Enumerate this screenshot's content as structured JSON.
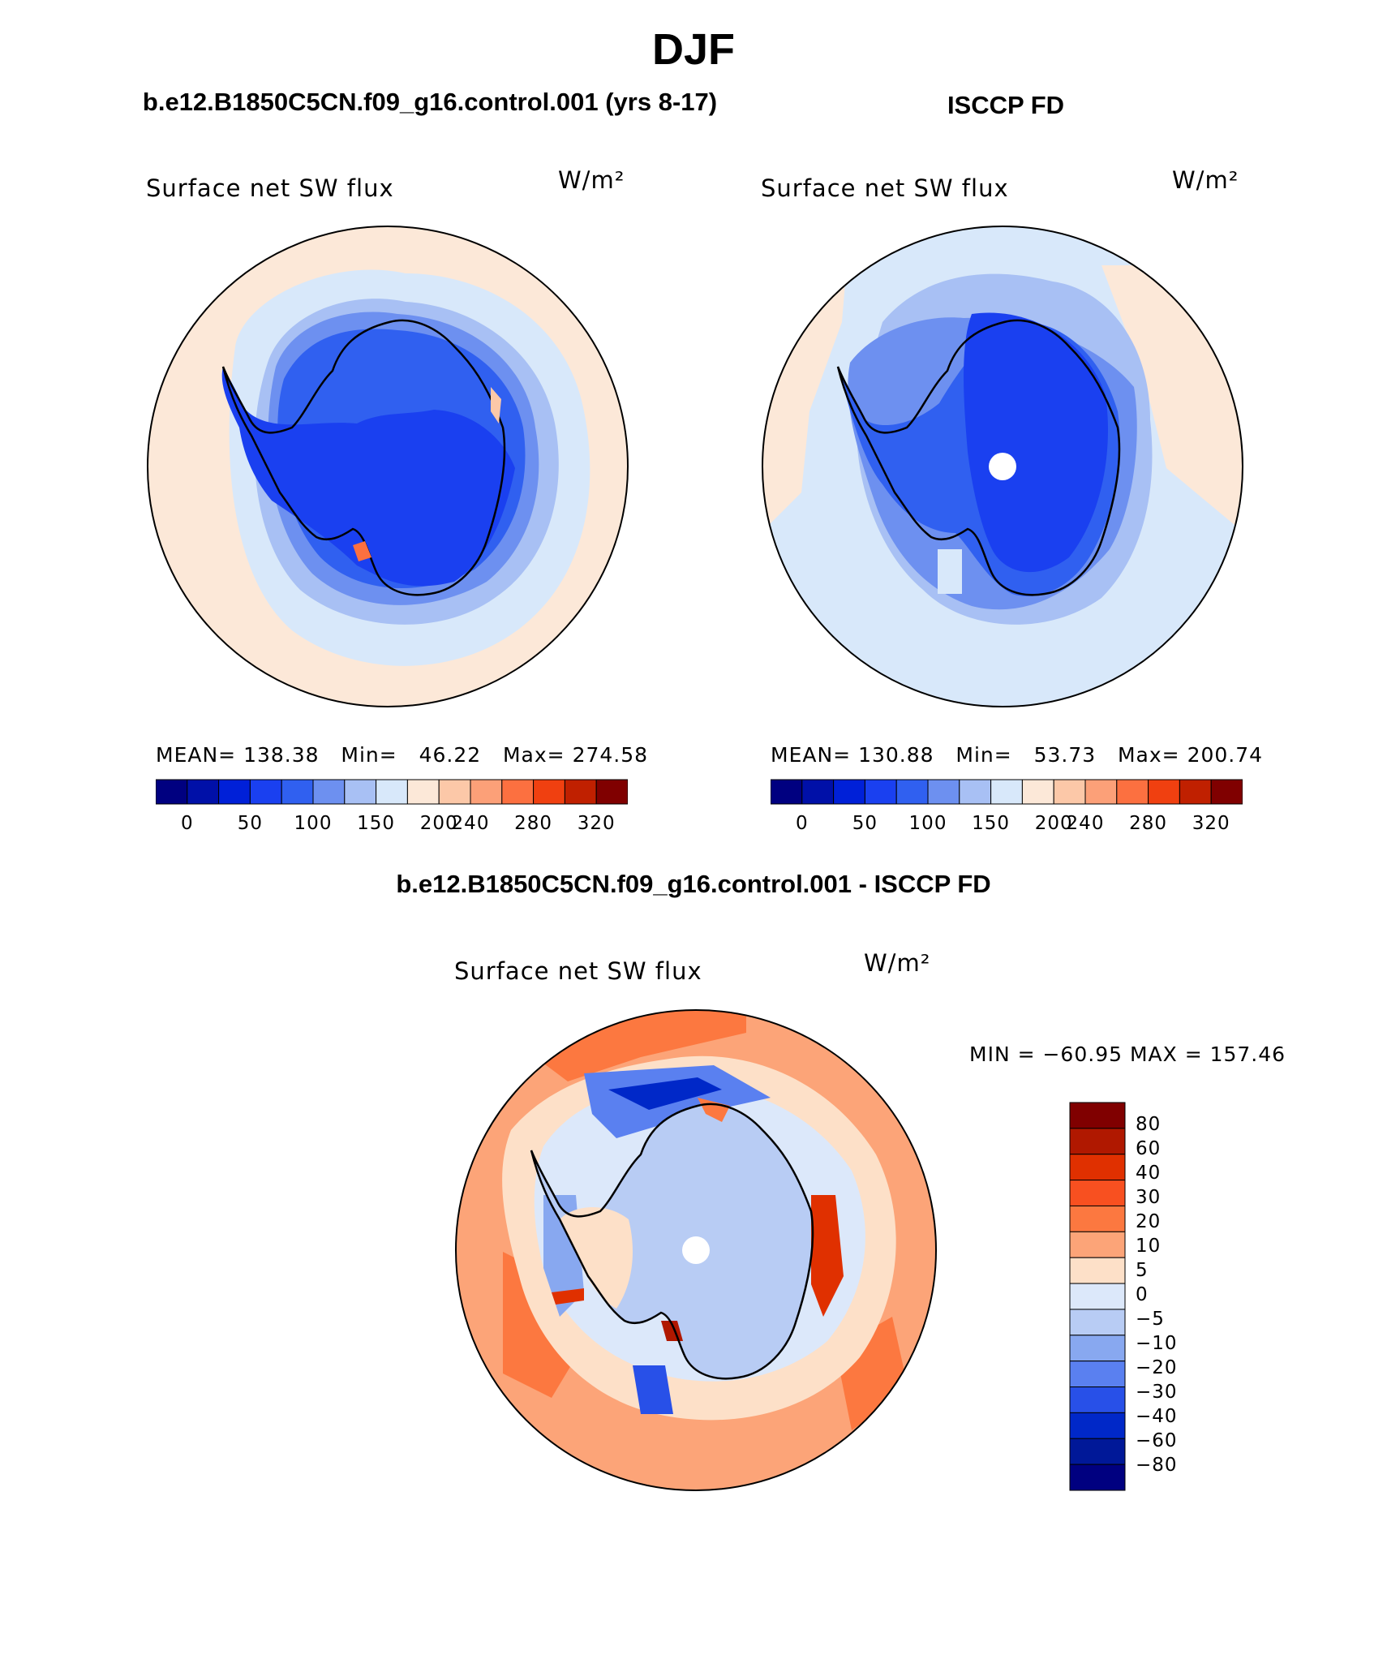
{
  "title": "DJF",
  "case_left": "b.e12.B1850C5CN.f09_g16.control.001 (yrs 8-17)",
  "case_right": "ISCCP FD",
  "case_diff": "b.e12.B1850C5CN.f09_g16.control.001 - ISCCP FD",
  "panels": {
    "model": {
      "title": "Surface net SW flux",
      "units": "W/m²",
      "mean_label": "MEAN=",
      "mean": "138.38",
      "min_label": "Min=",
      "min": "46.22",
      "max_label": "Max=",
      "max": "274.58"
    },
    "obs": {
      "title": "Surface net SW flux",
      "units": "W/m²",
      "mean_label": "MEAN=",
      "mean": "130.88",
      "min_label": "Min=",
      "min": "53.73",
      "max_label": "Max=",
      "max": "200.74"
    },
    "diff": {
      "title": "Surface net SW flux",
      "units": "W/m²",
      "minmax": "MIN = −60.95 MAX = 157.46"
    }
  },
  "abs_colorbar": {
    "colors": [
      "#000080",
      "#0010a8",
      "#0020d8",
      "#1a40f0",
      "#3060f0",
      "#6d90f0",
      "#a8c0f4",
      "#d8e8fa",
      "#fce8d8",
      "#fcc8a8",
      "#fca078",
      "#fc7040",
      "#f04010",
      "#c02000",
      "#800000"
    ],
    "tick_labels": [
      "0",
      "50",
      "100",
      "150",
      "200",
      "240",
      "280",
      "320"
    ]
  },
  "diff_colorbar": {
    "colors_top_to_bottom": [
      "#800000",
      "#b01800",
      "#e03000",
      "#f85020",
      "#fc7840",
      "#fca478",
      "#fde0c8",
      "#dce8fa",
      "#b8ccf4",
      "#88a8f0",
      "#5a80f0",
      "#2850e8",
      "#0028c8",
      "#001898",
      "#000080"
    ],
    "tick_labels": [
      "80",
      "60",
      "40",
      "30",
      "20",
      "10",
      "5",
      "0",
      "−5",
      "−10",
      "−20",
      "−30",
      "−40",
      "−60",
      "−80"
    ]
  }
}
